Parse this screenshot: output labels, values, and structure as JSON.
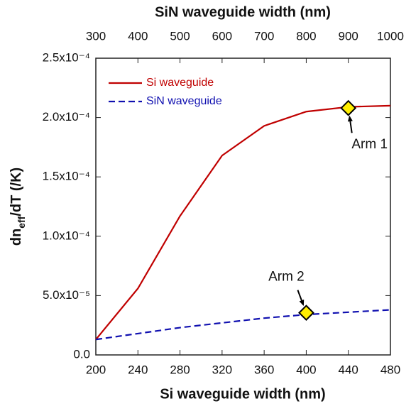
{
  "chart_data": {
    "type": "line",
    "x2_label": "SiN waveguide width (nm)",
    "x_label": "Si waveguide width (nm)",
    "y_label": [
      "dn",
      "eff",
      "/dT (/K)"
    ],
    "xlim": [
      200,
      480
    ],
    "xticks": [
      200,
      240,
      280,
      320,
      360,
      400,
      440,
      480
    ],
    "x2lim": [
      300,
      1000
    ],
    "x2ticks": [
      300,
      400,
      500,
      600,
      700,
      800,
      900,
      1000
    ],
    "ylim": [
      0,
      0.00025
    ],
    "yticks": [
      {
        "value": 0,
        "label": "0.0"
      },
      {
        "value": 5e-05,
        "label": "5.0x10⁻⁵"
      },
      {
        "value": 0.0001,
        "label": "1.0x10⁻⁴"
      },
      {
        "value": 0.00015,
        "label": "1.5x10⁻⁴"
      },
      {
        "value": 0.0002,
        "label": "2.0x10⁻⁴"
      },
      {
        "value": 0.00025,
        "label": "2.5x10⁻⁴"
      }
    ],
    "series": [
      {
        "name": "Si waveguide",
        "color": "#c00000",
        "dash": false,
        "axis": "x",
        "x": [
          200,
          240,
          280,
          320,
          360,
          400,
          440,
          480
        ],
        "values": [
          1.3e-05,
          5.6e-05,
          0.000117,
          0.000168,
          0.000193,
          0.000205,
          0.000209,
          0.00021
        ]
      },
      {
        "name": "SiN waveguide",
        "color": "#1010b0",
        "dash": true,
        "axis": "x2",
        "x": [
          300,
          400,
          500,
          600,
          700,
          800,
          900,
          1000
        ],
        "values": [
          1.3e-05,
          1.8e-05,
          2.3e-05,
          2.7e-05,
          3.1e-05,
          3.4e-05,
          3.6e-05,
          3.8e-05
        ]
      }
    ],
    "legend": "top-left",
    "annotations": [
      {
        "text": "Arm 1",
        "x": 440,
        "y": 0.000208,
        "axis": "x",
        "color": "#ffee00"
      },
      {
        "text": "Arm 2",
        "x": 800,
        "y": 3.55e-05,
        "axis": "x2",
        "color": "#ffee00"
      }
    ]
  }
}
